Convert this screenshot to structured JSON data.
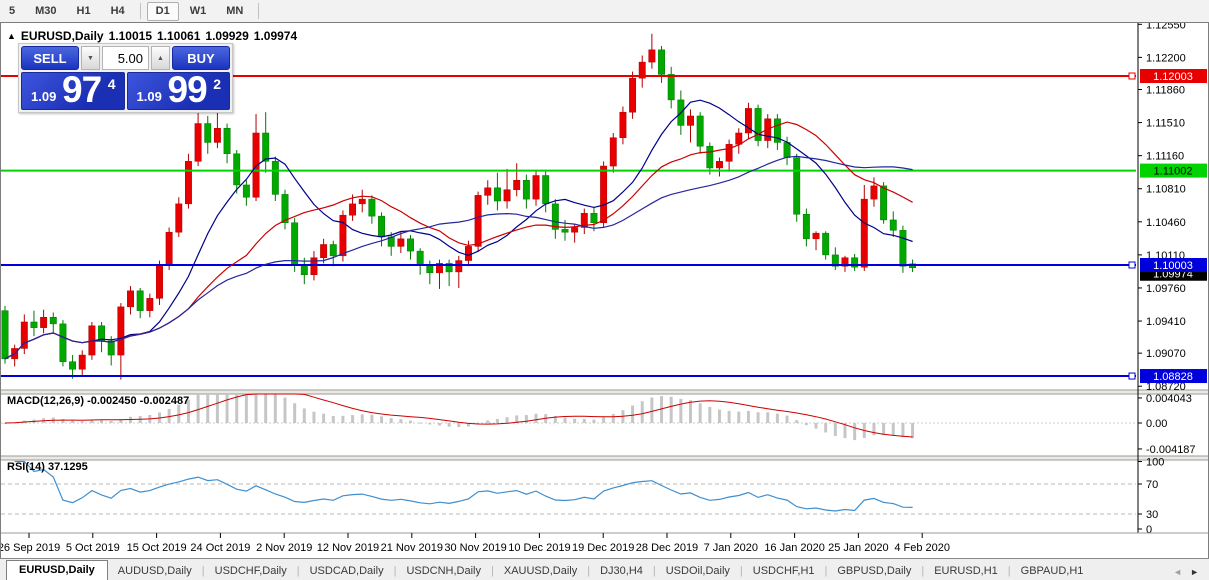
{
  "toolbar": {
    "timeframes": [
      "5",
      "M30",
      "H1",
      "H4",
      "D1",
      "W1",
      "MN"
    ],
    "active": "D1"
  },
  "header": {
    "arrow": "▲",
    "symbol": "EURUSD,Daily",
    "open": "1.10015",
    "high": "1.10061",
    "low": "1.09929",
    "close": "1.09974"
  },
  "trade_panel": {
    "sell_label": "SELL",
    "buy_label": "BUY",
    "volume": "5.00",
    "down_arrow": "▼",
    "up_arrow": "▲",
    "sell_price": {
      "small": "1.09",
      "big": "97",
      "sup": "4"
    },
    "buy_price": {
      "small": "1.09",
      "big": "99",
      "sup": "2"
    }
  },
  "price_axis": {
    "ticks": [
      "1.12550",
      "1.12200",
      "1.11860",
      "1.11510",
      "1.11160",
      "1.10810",
      "1.10460",
      "1.10110",
      "1.09760",
      "1.09410",
      "1.09070",
      "1.08720"
    ]
  },
  "levels": [
    {
      "label": "1.12003",
      "value": 1.12003,
      "color": "#e80000",
      "text_color": "#ffffff",
      "marker": true
    },
    {
      "label": "1.11002",
      "value": 1.11002,
      "color": "#00d300",
      "text_color": "#000000",
      "marker": false
    },
    {
      "label": "1.10003",
      "value": 1.10003,
      "color": "#0000dc",
      "text_color": "#ffffff",
      "marker": true
    },
    {
      "label": "1.08828",
      "value": 1.08828,
      "color": "#0000dc",
      "text_color": "#ffffff",
      "marker": true
    }
  ],
  "current_price": {
    "label": "1.09974",
    "value": 1.09974,
    "bg": "#000000",
    "text_color": "#ffffff"
  },
  "indicators": {
    "macd": {
      "label": "MACD(12,26,9) -0.002450 -0.002487",
      "params": [
        12,
        26,
        9
      ],
      "value_main": "-0.002450",
      "value_signal": "-0.002487",
      "ticks": [
        {
          "label": "0.004043",
          "value": 0.004043
        },
        {
          "label": "0.00",
          "value": 0
        },
        {
          "label": "-0.004187",
          "value": -0.004187
        }
      ],
      "histogram_color": "#c6c6c6",
      "signal_color": "#cc0000"
    },
    "rsi": {
      "label": "RSI(14) 37.1295",
      "period": 14,
      "value": "37.1295",
      "ticks": [
        {
          "label": "100",
          "value": 100
        },
        {
          "label": "70",
          "value": 70
        },
        {
          "label": "30",
          "value": 30
        },
        {
          "label": "0",
          "value": 0
        }
      ],
      "levels": [
        70,
        30
      ],
      "line_color": "#3e8fd0"
    }
  },
  "date_axis": {
    "labels": [
      "26 Sep 2019",
      "5 Oct 2019",
      "15 Oct 2019",
      "24 Oct 2019",
      "2 Nov 2019",
      "12 Nov 2019",
      "21 Nov 2019",
      "30 Nov 2019",
      "10 Dec 2019",
      "19 Dec 2019",
      "28 Dec 2019",
      "7 Jan 2020",
      "16 Jan 2020",
      "25 Jan 2020",
      "4 Feb 2020"
    ]
  },
  "tabs": {
    "items": [
      "EURUSD,Daily",
      "AUDUSD,Daily",
      "USDCHF,Daily",
      "USDCAD,Daily",
      "USDCNH,Daily",
      "XAUUSD,Daily",
      "DJ30,H4",
      "USDOil,Daily",
      "USDCHF,H1",
      "GBPUSD,Daily",
      "EURUSD,H1",
      "GBPAUD,H1"
    ],
    "active_index": 0,
    "scroll_left": "◄",
    "scroll_right": "►"
  },
  "chart_data": {
    "type": "candlestick",
    "symbol": "EURUSD",
    "timeframe": "Daily",
    "x_range": "26 Sep 2019 – 6 Feb 2020",
    "bull_color": "#e80000",
    "bull_border": "#b00000",
    "bear_color": "#00a800",
    "bear_border": "#007800",
    "note": "up candles are red, down candles are green; OHLC per bar",
    "ma_overlays": [
      {
        "period": 10,
        "color": "#00008b"
      },
      {
        "period": 20,
        "color": "#cc0000"
      },
      {
        "period": 34,
        "color": "#26269e"
      }
    ],
    "candles": [
      [
        1.0952,
        1.0957,
        1.0896,
        1.0901
      ],
      [
        1.0901,
        1.0916,
        1.0893,
        1.0912
      ],
      [
        1.0912,
        1.0948,
        1.0906,
        1.094
      ],
      [
        1.094,
        1.0952,
        1.0925,
        1.0934
      ],
      [
        1.0934,
        1.0953,
        1.0928,
        1.0945
      ],
      [
        1.0945,
        1.095,
        1.0928,
        1.0938
      ],
      [
        1.0938,
        1.0942,
        1.0893,
        1.0898
      ],
      [
        1.0898,
        1.0905,
        1.088,
        1.089
      ],
      [
        1.089,
        1.091,
        1.0884,
        1.0905
      ],
      [
        1.0905,
        1.094,
        1.09,
        1.0936
      ],
      [
        1.0936,
        1.094,
        1.0908,
        1.092
      ],
      [
        1.092,
        1.0925,
        1.0894,
        1.0905
      ],
      [
        1.0905,
        1.096,
        1.0879,
        1.0956
      ],
      [
        1.0956,
        1.0978,
        1.0948,
        1.0973
      ],
      [
        1.0973,
        1.0976,
        1.0944,
        1.0952
      ],
      [
        1.0952,
        1.097,
        1.0945,
        1.0965
      ],
      [
        1.0965,
        1.1005,
        1.0958,
        1.1
      ],
      [
        1.1,
        1.104,
        1.0995,
        1.1035
      ],
      [
        1.1035,
        1.1072,
        1.103,
        1.1065
      ],
      [
        1.1065,
        1.1118,
        1.106,
        1.111
      ],
      [
        1.111,
        1.1164,
        1.1105,
        1.115
      ],
      [
        1.115,
        1.1158,
        1.1118,
        1.113
      ],
      [
        1.113,
        1.117,
        1.1124,
        1.1145
      ],
      [
        1.1145,
        1.115,
        1.1108,
        1.1118
      ],
      [
        1.1118,
        1.1122,
        1.1076,
        1.1085
      ],
      [
        1.1085,
        1.109,
        1.1063,
        1.1072
      ],
      [
        1.1072,
        1.116,
        1.1068,
        1.114
      ],
      [
        1.114,
        1.1162,
        1.1098,
        1.111
      ],
      [
        1.111,
        1.1115,
        1.1068,
        1.1075
      ],
      [
        1.1075,
        1.108,
        1.1038,
        1.1045
      ],
      [
        1.1045,
        1.105,
        1.0993,
        1.1
      ],
      [
        1.1,
        1.1008,
        1.098,
        1.099
      ],
      [
        1.099,
        1.1015,
        1.0984,
        1.1008
      ],
      [
        1.1008,
        1.1028,
        1.1002,
        1.1022
      ],
      [
        1.1022,
        1.1026,
        1.0999,
        1.101
      ],
      [
        1.101,
        1.1058,
        1.1004,
        1.1053
      ],
      [
        1.1053,
        1.1075,
        1.1047,
        1.1065
      ],
      [
        1.1065,
        1.108,
        1.1056,
        1.107
      ],
      [
        1.107,
        1.1074,
        1.1044,
        1.1052
      ],
      [
        1.1052,
        1.1056,
        1.102,
        1.103
      ],
      [
        1.103,
        1.1035,
        1.101,
        1.102
      ],
      [
        1.102,
        1.1035,
        1.1013,
        1.1028
      ],
      [
        1.1028,
        1.1032,
        1.1006,
        1.1015
      ],
      [
        1.1015,
        1.1018,
        1.099,
        1.1
      ],
      [
        1.1,
        1.1005,
        1.098,
        1.0992
      ],
      [
        1.0992,
        1.1006,
        1.0975,
        1.1002
      ],
      [
        1.1002,
        1.1006,
        1.0978,
        1.0993
      ],
      [
        1.0993,
        1.101,
        1.0976,
        1.1005
      ],
      [
        1.1005,
        1.1026,
        1.0999,
        1.102
      ],
      [
        1.102,
        1.1078,
        1.1014,
        1.1074
      ],
      [
        1.1074,
        1.109,
        1.1064,
        1.1082
      ],
      [
        1.1082,
        1.1098,
        1.1058,
        1.1068
      ],
      [
        1.1068,
        1.1102,
        1.106,
        1.108
      ],
      [
        1.108,
        1.1108,
        1.1073,
        1.109
      ],
      [
        1.109,
        1.1096,
        1.106,
        1.107
      ],
      [
        1.107,
        1.1101,
        1.1063,
        1.1095
      ],
      [
        1.1095,
        1.1101,
        1.1056,
        1.1065
      ],
      [
        1.1065,
        1.107,
        1.1028,
        1.1038
      ],
      [
        1.1038,
        1.1048,
        1.1026,
        1.1035
      ],
      [
        1.1035,
        1.1044,
        1.1024,
        1.104
      ],
      [
        1.104,
        1.106,
        1.1033,
        1.1055
      ],
      [
        1.1055,
        1.1062,
        1.1036,
        1.1045
      ],
      [
        1.1045,
        1.111,
        1.104,
        1.1105
      ],
      [
        1.1105,
        1.114,
        1.1098,
        1.1135
      ],
      [
        1.1135,
        1.1168,
        1.1128,
        1.1162
      ],
      [
        1.1162,
        1.1205,
        1.1155,
        1.1198
      ],
      [
        1.1198,
        1.1222,
        1.1188,
        1.1215
      ],
      [
        1.1215,
        1.1245,
        1.1208,
        1.1228
      ],
      [
        1.1228,
        1.1232,
        1.1193,
        1.1202
      ],
      [
        1.1202,
        1.121,
        1.1166,
        1.1175
      ],
      [
        1.1175,
        1.1185,
        1.1138,
        1.1148
      ],
      [
        1.1148,
        1.1165,
        1.113,
        1.1158
      ],
      [
        1.1158,
        1.1162,
        1.1118,
        1.1126
      ],
      [
        1.1126,
        1.113,
        1.1096,
        1.1103
      ],
      [
        1.1103,
        1.1114,
        1.1094,
        1.111
      ],
      [
        1.111,
        1.1133,
        1.1099,
        1.1128
      ],
      [
        1.1128,
        1.1145,
        1.1118,
        1.114
      ],
      [
        1.114,
        1.1172,
        1.1134,
        1.1166
      ],
      [
        1.1166,
        1.117,
        1.1126,
        1.1132
      ],
      [
        1.1132,
        1.116,
        1.1124,
        1.1155
      ],
      [
        1.1155,
        1.116,
        1.1122,
        1.113
      ],
      [
        1.113,
        1.1136,
        1.1106,
        1.1114
      ],
      [
        1.1114,
        1.1118,
        1.1046,
        1.1054
      ],
      [
        1.1054,
        1.106,
        1.102,
        1.1028
      ],
      [
        1.1028,
        1.1036,
        1.1016,
        1.1034
      ],
      [
        1.1034,
        1.1036,
        1.1006,
        1.1011
      ],
      [
        1.1011,
        1.1019,
        1.0995,
        1.0999
      ],
      [
        1.0999,
        1.101,
        1.0993,
        1.1008
      ],
      [
        1.1008,
        1.1012,
        1.0994,
        1.0998
      ],
      [
        1.0998,
        1.1085,
        1.0994,
        1.107
      ],
      [
        1.107,
        1.1093,
        1.1062,
        1.1084
      ],
      [
        1.1084,
        1.1088,
        1.1044,
        1.1048
      ],
      [
        1.1048,
        1.1057,
        1.103,
        1.1037
      ],
      [
        1.1037,
        1.1042,
        1.0992,
        1.0999
      ],
      [
        1.10015,
        1.10061,
        1.09929,
        1.09974
      ]
    ]
  }
}
